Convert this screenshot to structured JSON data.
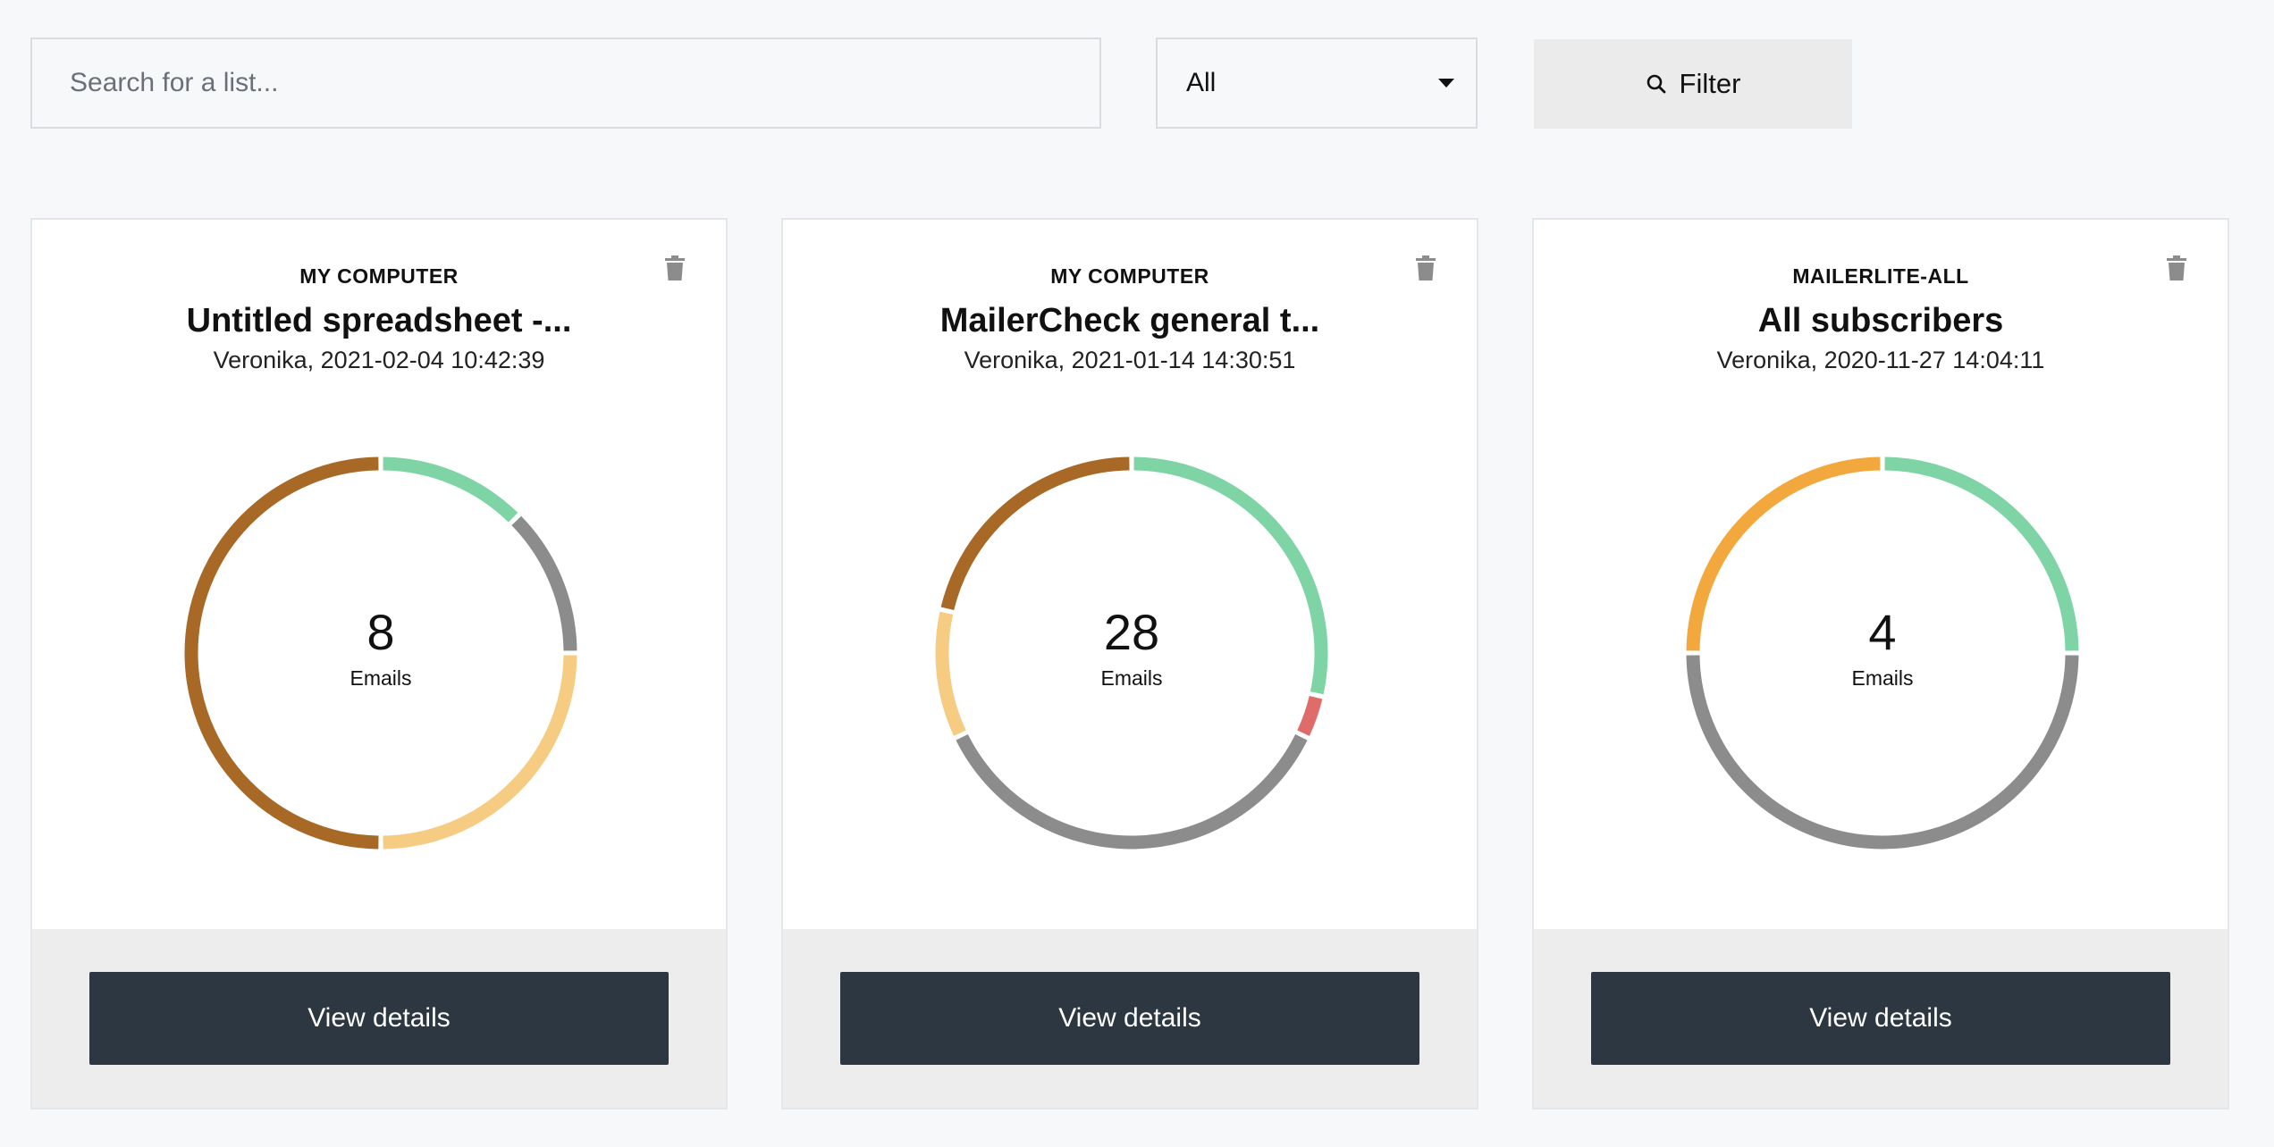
{
  "toolbar": {
    "search_placeholder": "Search for a list...",
    "select_value": "All",
    "filter_label": "Filter"
  },
  "colors": {
    "green": "#7fd4a6",
    "gray": "#8c8c8c",
    "light_orange": "#f5cc82",
    "brown": "#a86826",
    "red": "#e06b6b",
    "orange": "#f3a83e",
    "button_dark": "#2d3741"
  },
  "cards": [
    {
      "source": "MY COMPUTER",
      "title": "Untitled spreadsheet -...",
      "meta": "Veronika, 2021-02-04 10:42:39",
      "count": "8",
      "count_label": "Emails",
      "button": "View details",
      "segments": [
        {
          "color": "green",
          "value": 1
        },
        {
          "color": "gray",
          "value": 1
        },
        {
          "color": "light_orange",
          "value": 2
        },
        {
          "color": "brown",
          "value": 4
        }
      ]
    },
    {
      "source": "MY COMPUTER",
      "title": "MailerCheck general t...",
      "meta": "Veronika, 2021-01-14 14:30:51",
      "count": "28",
      "count_label": "Emails",
      "button": "View details",
      "segments": [
        {
          "color": "green",
          "value": 8
        },
        {
          "color": "red",
          "value": 1
        },
        {
          "color": "gray",
          "value": 10
        },
        {
          "color": "light_orange",
          "value": 3
        },
        {
          "color": "brown",
          "value": 6
        }
      ]
    },
    {
      "source": "MAILERLITE-ALL",
      "title": "All subscribers",
      "meta": "Veronika, 2020-11-27 14:04:11",
      "count": "4",
      "count_label": "Emails",
      "button": "View details",
      "segments": [
        {
          "color": "green",
          "value": 1
        },
        {
          "color": "gray",
          "value": 2
        },
        {
          "color": "orange",
          "value": 1
        }
      ]
    }
  ]
}
